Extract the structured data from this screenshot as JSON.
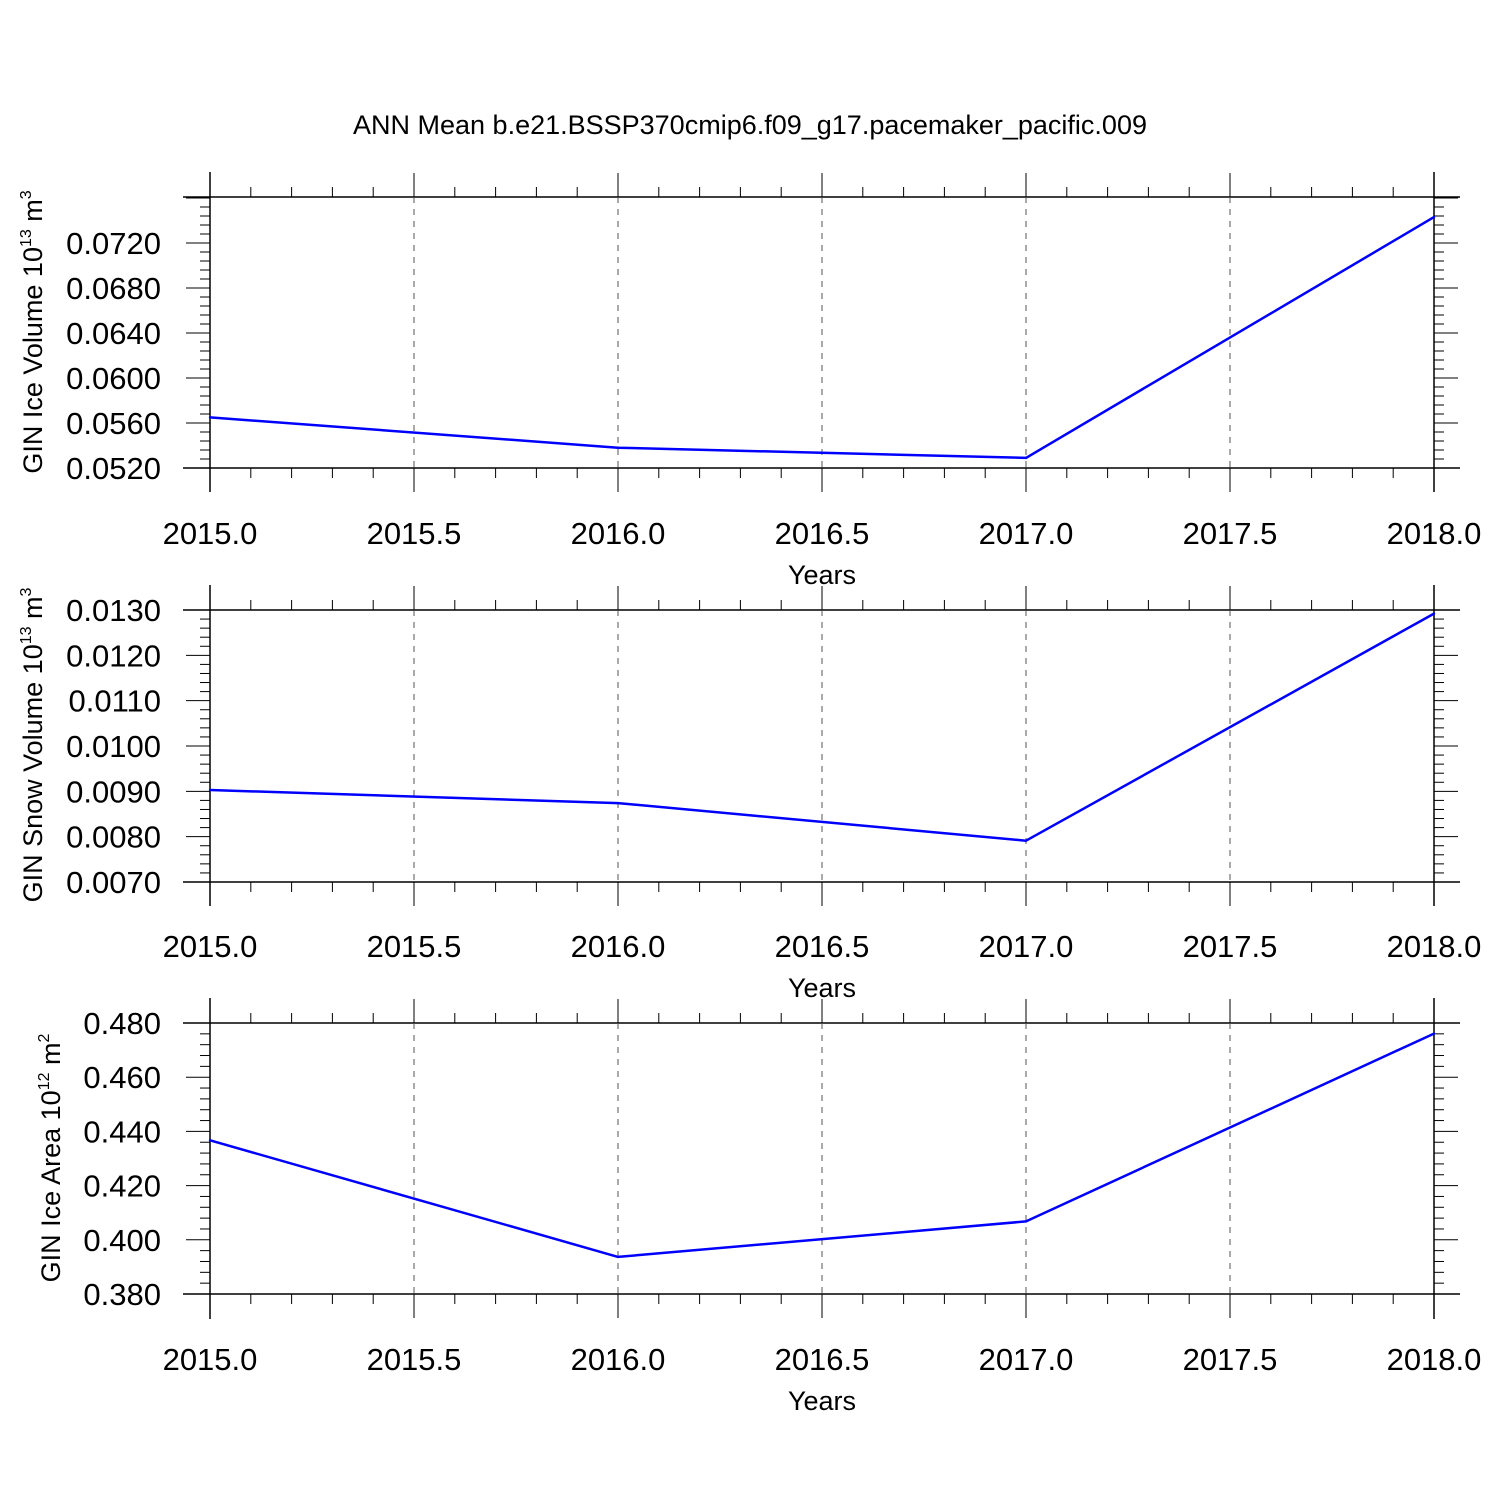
{
  "figure": {
    "title": "ANN Mean b.e21.BSSP370cmip6.f09_g17.pacemaker_pacific.009",
    "line_color": "#0000ff",
    "grid_color": "#555555"
  },
  "chart_data": [
    {
      "type": "line",
      "title": "ANN Mean b.e21.BSSP370cmip6.f09_g17.pacemaker_pacific.009",
      "xlabel": "Years",
      "ylabel": {
        "text": "GIN Ice Volume 10",
        "exponent": "13",
        "unit": "m",
        "unit_exponent": "3"
      },
      "x": [
        2015.0,
        2016.0,
        2017.0,
        2018.0
      ],
      "y": [
        0.0565,
        0.0538,
        0.0529,
        0.0743
      ],
      "xlim": [
        2015.0,
        2018.0
      ],
      "ylim": [
        0.052,
        0.076
      ],
      "xticks": [
        "2015.0",
        "2015.5",
        "2016.0",
        "2016.5",
        "2017.0",
        "2017.5",
        "2018.0"
      ],
      "yticks": [
        "0.0520",
        "0.0560",
        "0.0600",
        "0.0640",
        "0.0680",
        "0.0720"
      ],
      "grid": "x dashed",
      "series_color": "#0000ff"
    },
    {
      "type": "line",
      "xlabel": "Years",
      "ylabel": {
        "text": "GIN Snow Volume 10",
        "exponent": "13",
        "unit": "m",
        "unit_exponent": "3"
      },
      "x": [
        2015.0,
        2016.0,
        2017.0,
        2018.0
      ],
      "y": [
        0.00903,
        0.00874,
        0.00791,
        0.01292
      ],
      "xlim": [
        2015.0,
        2018.0
      ],
      "ylim": [
        0.007,
        0.013
      ],
      "xticks": [
        "2015.0",
        "2015.5",
        "2016.0",
        "2016.5",
        "2017.0",
        "2017.5",
        "2018.0"
      ],
      "yticks": [
        "0.0070",
        "0.0080",
        "0.0090",
        "0.0100",
        "0.0110",
        "0.0120",
        "0.0130"
      ],
      "grid": "x dashed",
      "series_color": "#0000ff"
    },
    {
      "type": "line",
      "xlabel": "Years",
      "ylabel": {
        "text": "GIN Ice Area 10",
        "exponent": "12",
        "unit": "m",
        "unit_exponent": "2"
      },
      "x": [
        2015.0,
        2016.0,
        2017.0,
        2018.0
      ],
      "y": [
        0.4367,
        0.3937,
        0.4068,
        0.4761
      ],
      "xlim": [
        2015.0,
        2018.0
      ],
      "ylim": [
        0.38,
        0.48
      ],
      "xticks": [
        "2015.0",
        "2015.5",
        "2016.0",
        "2016.5",
        "2017.0",
        "2017.5",
        "2018.0"
      ],
      "yticks": [
        "0.380",
        "0.400",
        "0.420",
        "0.440",
        "0.460",
        "0.480"
      ],
      "grid": "x dashed",
      "series_color": "#0000ff"
    }
  ]
}
